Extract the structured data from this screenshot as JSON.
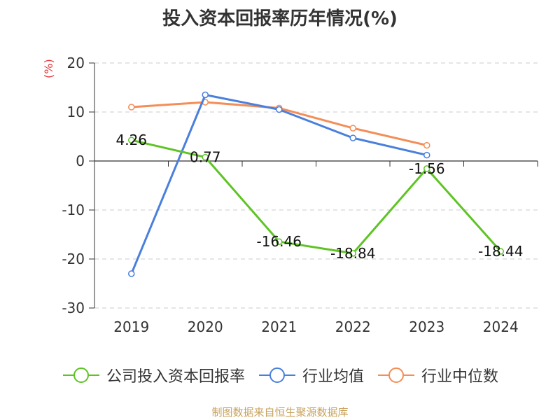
{
  "title": "投入资本回报率历年情况(%)",
  "unit": "(%)",
  "footer": "制图数据来自恒生聚源数据库",
  "chart_data": {
    "type": "line",
    "categories": [
      "2019",
      "2020",
      "2021",
      "2022",
      "2023",
      "2024"
    ],
    "ylim": [
      -30,
      20
    ],
    "yticks": [
      20,
      10,
      0,
      -10,
      -20,
      -30
    ],
    "grid": true,
    "legend_position": "bottom",
    "series": [
      {
        "name": "公司投入资本回报率",
        "color": "#5ec424",
        "values": [
          4.26,
          0.77,
          -16.46,
          -18.84,
          -1.56,
          -18.44
        ],
        "labels": [
          "4.26",
          "0.77",
          "-16.46",
          "-18.84",
          "-1.56",
          "-18.44"
        ]
      },
      {
        "name": "行业均值",
        "color": "#4a7fdc",
        "values": [
          -23,
          13.5,
          10.5,
          4.7,
          1.2,
          null
        ]
      },
      {
        "name": "行业中位数",
        "color": "#f48d57",
        "values": [
          11,
          12,
          10.8,
          6.7,
          3.2,
          null
        ]
      }
    ]
  }
}
